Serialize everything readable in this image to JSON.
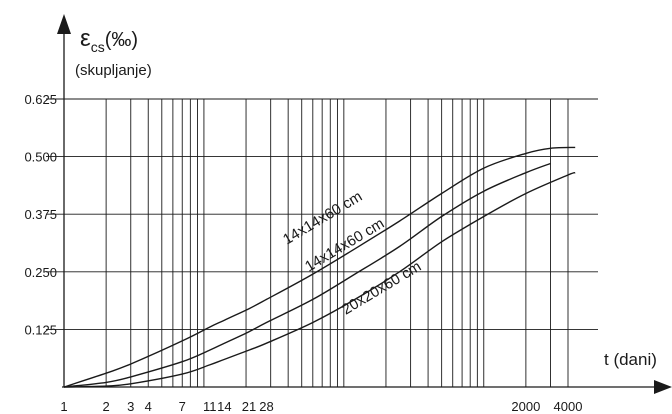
{
  "chart_data": {
    "type": "line",
    "y_axis": {
      "title_symbol": "ε",
      "title_subscript": "cs",
      "title_unit": "(‰)",
      "title_note": "(skupljanje)",
      "ylim": [
        0,
        0.625
      ],
      "ticks": [
        "0.625",
        "0.500",
        "0.375",
        "0.250",
        "0.125"
      ],
      "tick_values": [
        0.625,
        0.5,
        0.375,
        0.25,
        0.125
      ]
    },
    "x_axis": {
      "title": "t (dani)",
      "scale": "log",
      "xlim": [
        1,
        4000
      ],
      "ticks": [
        "1",
        "2",
        "3",
        "4",
        "7",
        "11",
        "14",
        "21",
        "28",
        "2000",
        "4000"
      ],
      "tick_values": [
        1,
        2,
        3,
        4,
        7,
        11,
        14,
        21,
        28,
        2000,
        4000
      ]
    },
    "grid": true,
    "series": [
      {
        "name": "14x14x60 cm",
        "points": [
          [
            1,
            0
          ],
          [
            2,
            0.03
          ],
          [
            3,
            0.05
          ],
          [
            7,
            0.1
          ],
          [
            11,
            0.13
          ],
          [
            14,
            0.145
          ],
          [
            21,
            0.17
          ],
          [
            28,
            0.19
          ],
          [
            60,
            0.245
          ],
          [
            120,
            0.3
          ],
          [
            250,
            0.36
          ],
          [
            500,
            0.42
          ],
          [
            1000,
            0.475
          ],
          [
            2000,
            0.507
          ],
          [
            3000,
            0.518
          ],
          [
            4500,
            0.52
          ]
        ]
      },
      {
        "name": "14x14x60 cm",
        "points": [
          [
            1,
            0
          ],
          [
            2,
            0.01
          ],
          [
            3,
            0.022
          ],
          [
            7,
            0.055
          ],
          [
            11,
            0.08
          ],
          [
            14,
            0.095
          ],
          [
            21,
            0.12
          ],
          [
            28,
            0.14
          ],
          [
            60,
            0.19
          ],
          [
            120,
            0.245
          ],
          [
            250,
            0.305
          ],
          [
            500,
            0.37
          ],
          [
            1000,
            0.425
          ],
          [
            2000,
            0.465
          ],
          [
            3000,
            0.485
          ]
        ]
      },
      {
        "name": "20x20x60 cm",
        "points": [
          [
            1,
            0
          ],
          [
            2,
            0.002
          ],
          [
            3,
            0.007
          ],
          [
            7,
            0.028
          ],
          [
            11,
            0.048
          ],
          [
            14,
            0.06
          ],
          [
            21,
            0.08
          ],
          [
            28,
            0.095
          ],
          [
            60,
            0.14
          ],
          [
            120,
            0.19
          ],
          [
            250,
            0.25
          ],
          [
            500,
            0.315
          ],
          [
            1000,
            0.37
          ],
          [
            2000,
            0.42
          ],
          [
            4000,
            0.46
          ],
          [
            4500,
            0.465
          ]
        ]
      }
    ]
  }
}
